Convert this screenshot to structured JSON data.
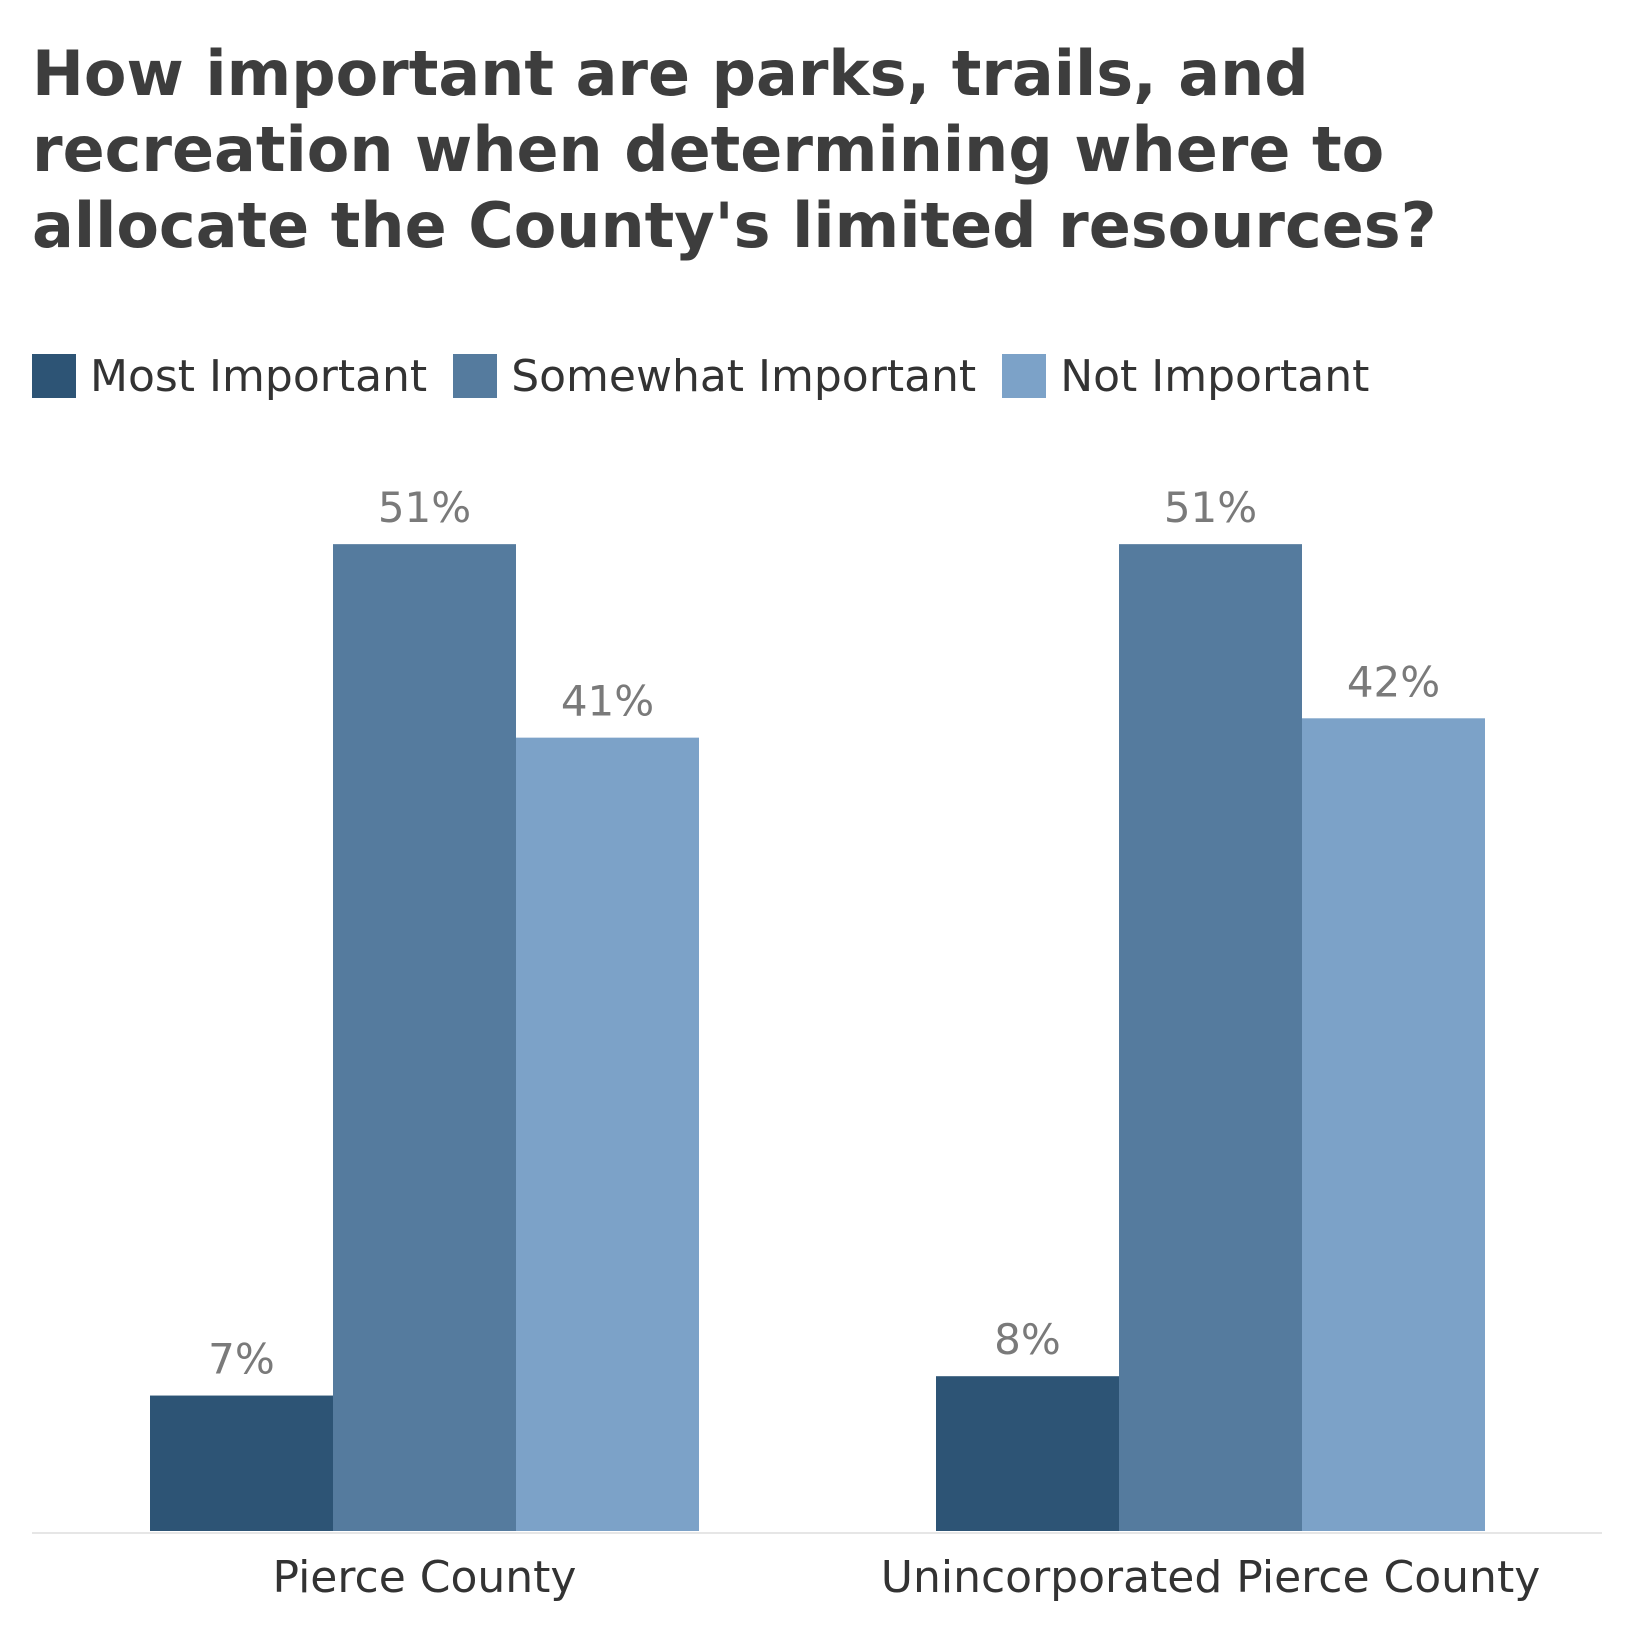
{
  "chart_data": {
    "type": "bar",
    "title": "How important are parks, trails, and recreation when determining where to allocate the County's limited resources?",
    "categories": [
      "Pierce County",
      "Unincorporated Pierce County"
    ],
    "series": [
      {
        "name": "Most Important",
        "values": [
          7,
          8
        ],
        "labels": [
          "7%",
          "8%"
        ],
        "color": "#2d5475"
      },
      {
        "name": "Somewhat Important",
        "values": [
          51,
          51
        ],
        "labels": [
          "51%",
          "51%"
        ],
        "color": "#557b9e"
      },
      {
        "name": "Not Important",
        "values": [
          41,
          42
        ],
        "labels": [
          "41%",
          "42%"
        ],
        "color": "#7ca2c8"
      }
    ],
    "ylim": [
      0,
      100
    ],
    "grid": false,
    "legend": "top-left",
    "xlabel": "",
    "ylabel": ""
  }
}
